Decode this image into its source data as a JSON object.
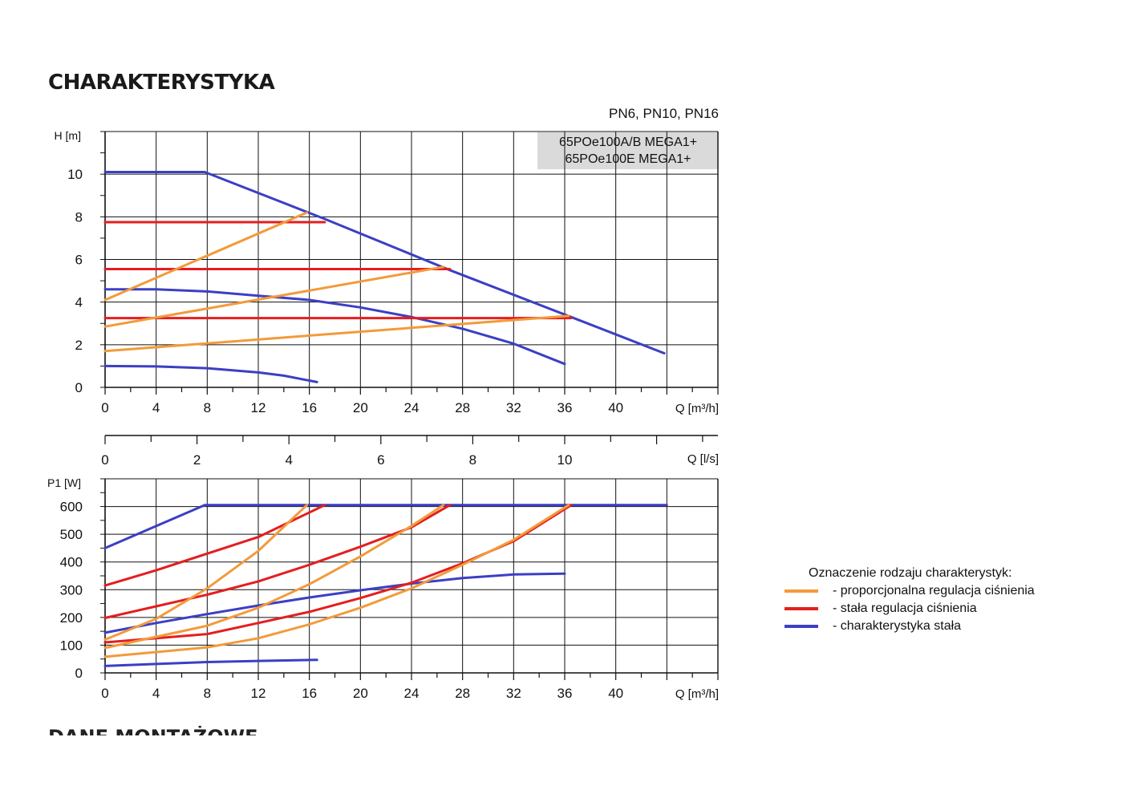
{
  "page": {
    "title": "CHARAKTERYSTYKA",
    "pressure_classes": "PN6, PN10, PN16",
    "models": [
      "65POe100A/B MEGA1+",
      "65POe100E MEGA1+"
    ],
    "next_section_title_partial": "DANE MONTAŻOWE"
  },
  "legend": {
    "title": "Oznaczenie rodzaju charakterystyk:",
    "items": [
      {
        "label": "- proporcjonalna regulacja ciśnienia",
        "color": "#f39a3a"
      },
      {
        "label": "- stała regulacja ciśnienia",
        "color": "#e41e1e"
      },
      {
        "label": "- charakterystyka stała",
        "color": "#3b3fc4"
      }
    ]
  },
  "colors": {
    "proportional": "#f39a3a",
    "constant_pressure": "#e41e1e",
    "constant_curve": "#3b3fc4"
  },
  "chart_data": [
    {
      "type": "line",
      "ylabel": "H [m]",
      "xlabel": "Q [m³/h]",
      "xlim": [
        0,
        48
      ],
      "ylim": [
        0,
        12
      ],
      "xticks": [
        0,
        4,
        8,
        12,
        16,
        20,
        24,
        28,
        32,
        36,
        40
      ],
      "yticks": [
        0,
        2,
        4,
        6,
        8,
        10
      ],
      "secondary_xaxis": {
        "label": "Q [l/s]",
        "ticks": [
          0,
          2,
          4,
          6,
          8,
          10
        ]
      },
      "grid": true,
      "series": [
        {
          "kind": "constant_curve",
          "points": [
            [
              0,
              10.1
            ],
            [
              7.8,
              10.1
            ],
            [
              17.2,
              7.9
            ],
            [
              27,
              5.5
            ],
            [
              36.5,
              3.3
            ],
            [
              43.8,
              1.6
            ]
          ]
        },
        {
          "kind": "constant_curve",
          "points": [
            [
              0,
              4.6
            ],
            [
              4,
              4.6
            ],
            [
              8,
              4.5
            ],
            [
              12,
              4.3
            ],
            [
              16,
              4.1
            ],
            [
              20,
              3.75
            ],
            [
              24,
              3.3
            ],
            [
              28,
              2.75
            ],
            [
              32,
              2.05
            ],
            [
              36,
              1.1
            ]
          ]
        },
        {
          "kind": "constant_curve",
          "points": [
            [
              0,
              1.0
            ],
            [
              4,
              0.98
            ],
            [
              8,
              0.9
            ],
            [
              12,
              0.7
            ],
            [
              14,
              0.55
            ],
            [
              16.6,
              0.25
            ]
          ]
        },
        {
          "kind": "constant_pressure",
          "points": [
            [
              0,
              7.75
            ],
            [
              17.2,
              7.75
            ]
          ]
        },
        {
          "kind": "constant_pressure",
          "points": [
            [
              0,
              5.55
            ],
            [
              27,
              5.55
            ]
          ]
        },
        {
          "kind": "constant_pressure",
          "points": [
            [
              0,
              3.25
            ],
            [
              36.5,
              3.25
            ]
          ]
        },
        {
          "kind": "proportional",
          "points": [
            [
              0,
              4.1
            ],
            [
              15.8,
              8.2
            ]
          ]
        },
        {
          "kind": "proportional",
          "points": [
            [
              0,
              2.85
            ],
            [
              26.5,
              5.65
            ]
          ]
        },
        {
          "kind": "proportional",
          "points": [
            [
              0,
              1.7
            ],
            [
              36.3,
              3.35
            ]
          ]
        }
      ]
    },
    {
      "type": "line",
      "ylabel": "P1 [W]",
      "xlabel": "Q [m³/h]",
      "xlim": [
        0,
        48
      ],
      "ylim": [
        0,
        700
      ],
      "xticks": [
        0,
        4,
        8,
        12,
        16,
        20,
        24,
        28,
        32,
        36,
        40
      ],
      "yticks": [
        0,
        100,
        200,
        300,
        400,
        500,
        600
      ],
      "grid": true,
      "series": [
        {
          "kind": "constant_curve",
          "points": [
            [
              0,
              450
            ],
            [
              7.8,
              605
            ],
            [
              44,
              605
            ]
          ]
        },
        {
          "kind": "constant_curve",
          "points": [
            [
              0,
              145
            ],
            [
              4,
              180
            ],
            [
              8,
              212
            ],
            [
              12,
              243
            ],
            [
              16,
              272
            ],
            [
              20,
              298
            ],
            [
              24,
              322
            ],
            [
              28,
              342
            ],
            [
              32,
              355
            ],
            [
              36,
              358
            ]
          ]
        },
        {
          "kind": "constant_curve",
          "points": [
            [
              0,
              25
            ],
            [
              4,
              32
            ],
            [
              8,
              39
            ],
            [
              12,
              43
            ],
            [
              16.6,
              47
            ]
          ]
        },
        {
          "kind": "constant_pressure",
          "points": [
            [
              0,
              315
            ],
            [
              4,
              370
            ],
            [
              8,
              430
            ],
            [
              12,
              490
            ],
            [
              17.2,
              605
            ]
          ]
        },
        {
          "kind": "constant_pressure",
          "points": [
            [
              0,
              198
            ],
            [
              4,
              240
            ],
            [
              8,
              282
            ],
            [
              12,
              330
            ],
            [
              16,
              390
            ],
            [
              20,
              455
            ],
            [
              24,
              525
            ],
            [
              27,
              605
            ]
          ]
        },
        {
          "kind": "constant_pressure",
          "points": [
            [
              0,
              110
            ],
            [
              8,
              140
            ],
            [
              12,
              180
            ],
            [
              16,
              220
            ],
            [
              20,
              270
            ],
            [
              24,
              325
            ],
            [
              28,
              395
            ],
            [
              32,
              475
            ],
            [
              36.5,
              605
            ]
          ]
        },
        {
          "kind": "proportional",
          "points": [
            [
              0,
              120
            ],
            [
              4,
              195
            ],
            [
              8,
              305
            ],
            [
              12,
              440
            ],
            [
              15.8,
              605
            ]
          ]
        },
        {
          "kind": "proportional",
          "points": [
            [
              0,
              90
            ],
            [
              8,
              170
            ],
            [
              12,
              235
            ],
            [
              16,
              320
            ],
            [
              20,
              420
            ],
            [
              24,
              530
            ],
            [
              26.5,
              605
            ]
          ]
        },
        {
          "kind": "proportional",
          "points": [
            [
              0,
              58
            ],
            [
              8,
              92
            ],
            [
              12,
              125
            ],
            [
              16,
              175
            ],
            [
              20,
              235
            ],
            [
              24,
              305
            ],
            [
              28,
              390
            ],
            [
              32,
              480
            ],
            [
              36.3,
              605
            ]
          ]
        }
      ]
    }
  ]
}
